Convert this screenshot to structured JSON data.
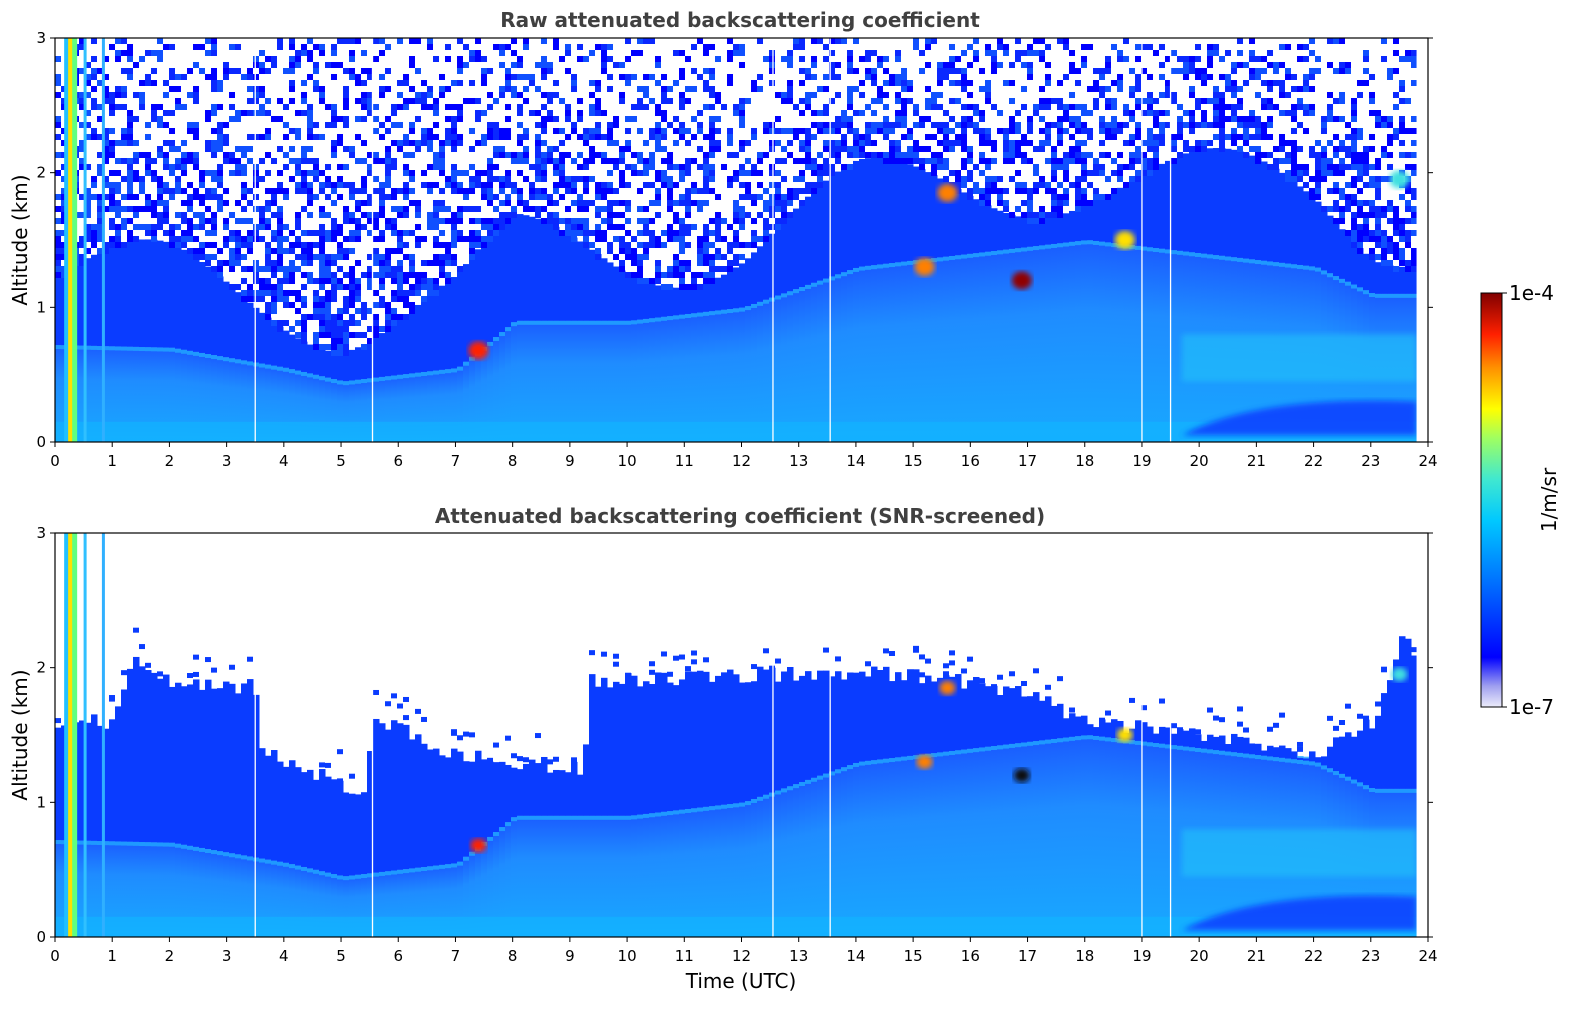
{
  "chart_data": [
    {
      "type": "heatmap",
      "title": "Raw attenuated backscattering coefficient",
      "xlabel": "",
      "ylabel": "Altitude (km)",
      "xlim": [
        0,
        24
      ],
      "ylim": [
        0,
        3
      ],
      "xticks": [
        "0",
        "1",
        "2",
        "3",
        "4",
        "5",
        "6",
        "7",
        "8",
        "9",
        "10",
        "11",
        "12",
        "13",
        "14",
        "15",
        "16",
        "17",
        "18",
        "19",
        "20",
        "21",
        "22",
        "23",
        "24"
      ],
      "yticks": [
        "0",
        "1",
        "2",
        "3"
      ],
      "features": {
        "aerosol_layer_top_km": [
          [
            0,
            0.72
          ],
          [
            2,
            0.7
          ],
          [
            4,
            0.55
          ],
          [
            5,
            0.45
          ],
          [
            7,
            0.55
          ],
          [
            8,
            0.9
          ],
          [
            10,
            0.9
          ],
          [
            12,
            1.0
          ],
          [
            14,
            1.3
          ],
          [
            16,
            1.4
          ],
          [
            17,
            1.45
          ],
          [
            18,
            1.5
          ],
          [
            20,
            1.4
          ],
          [
            22,
            1.3
          ],
          [
            23,
            1.1
          ],
          [
            24,
            1.1
          ]
        ],
        "cloud_patches": [
          {
            "x": 7.4,
            "y": 0.68,
            "level": "red"
          },
          {
            "x": 15.6,
            "y": 1.85,
            "level": "orange"
          },
          {
            "x": 15.2,
            "y": 1.3,
            "level": "orange"
          },
          {
            "x": 16.9,
            "y": 1.2,
            "level": "dark-red"
          },
          {
            "x": 18.7,
            "y": 1.5,
            "level": "yellow"
          },
          {
            "x": 23.5,
            "y": 1.95,
            "level": "cyan"
          }
        ],
        "gap_times": [
          3.5,
          5.55,
          12.55,
          13.55,
          19.0,
          19.5
        ],
        "noise_above": true
      }
    },
    {
      "type": "heatmap",
      "title": "Attenuated backscattering coefficient (SNR-screened)",
      "xlabel": "Time (UTC)",
      "ylabel": "Altitude (km)",
      "xlim": [
        0,
        24
      ],
      "ylim": [
        0,
        3
      ],
      "xticks": [
        "0",
        "1",
        "2",
        "3",
        "4",
        "5",
        "6",
        "7",
        "8",
        "9",
        "10",
        "11",
        "12",
        "13",
        "14",
        "15",
        "16",
        "17",
        "18",
        "19",
        "20",
        "21",
        "22",
        "23",
        "24"
      ],
      "yticks": [
        "0",
        "1",
        "2",
        "3"
      ],
      "features": {
        "screened_top_km": [
          [
            0.9,
            1.6
          ],
          [
            1.3,
            2.05
          ],
          [
            2,
            1.9
          ],
          [
            3,
            1.85
          ],
          [
            3.45,
            1.9
          ],
          [
            3.55,
            1.4
          ],
          [
            5.4,
            1.05
          ],
          [
            5.5,
            1.65
          ],
          [
            7,
            1.35
          ],
          [
            9.2,
            1.25
          ],
          [
            9.3,
            1.9
          ],
          [
            12,
            1.95
          ],
          [
            15,
            1.95
          ],
          [
            17,
            1.8
          ],
          [
            18,
            1.6
          ],
          [
            20,
            1.5
          ],
          [
            22,
            1.35
          ],
          [
            23,
            1.6
          ],
          [
            23.5,
            2.2
          ],
          [
            23.8,
            2.1
          ]
        ],
        "noise_above": false
      }
    }
  ],
  "colorbar": {
    "label": "1/m/sr",
    "max_label": "1e-4",
    "min_label": "1e-7",
    "scale": "log",
    "colormap": [
      "#e8e8f8",
      "#b8b8f0",
      "#0000ff",
      "#0060ff",
      "#00c0ff",
      "#40e0d0",
      "#80ff80",
      "#ffff00",
      "#ff8000",
      "#ff0000",
      "#800000"
    ]
  }
}
